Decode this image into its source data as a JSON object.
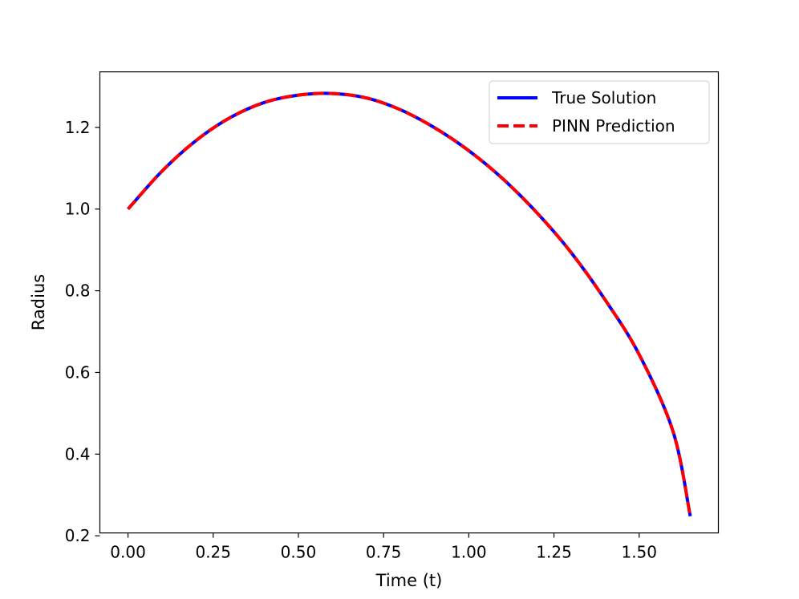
{
  "chart_data": {
    "type": "line",
    "title": "",
    "xlabel": "Time (t)",
    "ylabel": "Radius",
    "xlim": [
      -0.0825,
      1.7325
    ],
    "ylim": [
      0.207,
      1.336
    ],
    "xticks": [
      0.0,
      0.25,
      0.5,
      0.75,
      1.0,
      1.25,
      1.5
    ],
    "xtick_labels": [
      "0.00",
      "0.25",
      "0.50",
      "0.75",
      "1.00",
      "1.25",
      "1.50"
    ],
    "yticks": [
      0.2,
      0.4,
      0.6,
      0.8,
      1.0,
      1.2
    ],
    "ytick_labels": [
      "0.2",
      "0.4",
      "0.6",
      "0.8",
      "1.0",
      "1.2"
    ],
    "grid": false,
    "legend_position": "top-right",
    "series": [
      {
        "name": "True Solution",
        "color": "#0000ff",
        "style": "solid",
        "x": [
          0.0,
          0.1,
          0.2,
          0.3,
          0.4,
          0.5,
          0.6,
          0.7,
          0.8,
          0.9,
          1.0,
          1.1,
          1.2,
          1.3,
          1.4,
          1.5,
          1.6,
          1.65
        ],
        "y": [
          1.0,
          1.093,
          1.168,
          1.224,
          1.261,
          1.279,
          1.283,
          1.272,
          1.243,
          1.199,
          1.143,
          1.074,
          0.991,
          0.894,
          0.778,
          0.644,
          0.454,
          0.248
        ]
      },
      {
        "name": "PINN Prediction",
        "color": "#ff0000",
        "style": "dashed",
        "x": [
          0.0,
          0.1,
          0.2,
          0.3,
          0.4,
          0.5,
          0.6,
          0.7,
          0.8,
          0.9,
          1.0,
          1.1,
          1.2,
          1.3,
          1.4,
          1.5,
          1.6,
          1.65
        ],
        "y": [
          1.0,
          1.093,
          1.168,
          1.224,
          1.261,
          1.279,
          1.283,
          1.272,
          1.243,
          1.199,
          1.143,
          1.074,
          0.991,
          0.894,
          0.778,
          0.644,
          0.454,
          0.248
        ]
      }
    ]
  }
}
